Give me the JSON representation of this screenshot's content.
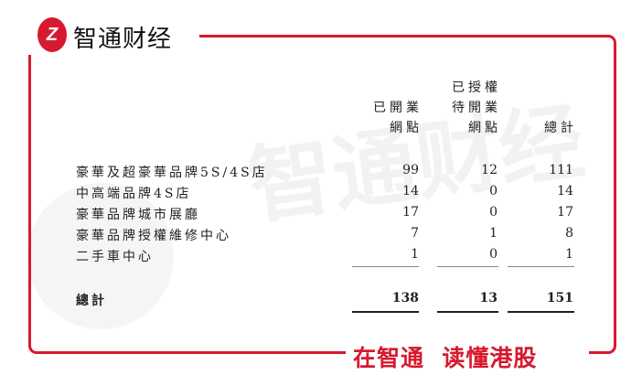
{
  "brand": {
    "logo_mark": "Z",
    "name": "智通财经",
    "slogan": "在智通  读懂港股",
    "watermark": "智通财经",
    "accent": "#d7192f"
  },
  "table": {
    "headers": [
      {
        "lines": [
          "",
          "已開業",
          "網點"
        ]
      },
      {
        "lines": [
          "已授權",
          "待開業",
          "網點"
        ]
      },
      {
        "lines": [
          "",
          "",
          "總計"
        ]
      }
    ],
    "rows": [
      {
        "label": "豪華及超豪華品牌5S/4S店",
        "values": [
          "99",
          "12",
          "111"
        ]
      },
      {
        "label": "中高端品牌4S店",
        "values": [
          "14",
          "0",
          "14"
        ]
      },
      {
        "label": "豪華品牌城市展廳",
        "values": [
          "17",
          "0",
          "17"
        ]
      },
      {
        "label": "豪華品牌授權維修中心",
        "values": [
          "7",
          "1",
          "8"
        ]
      },
      {
        "label": "二手車中心",
        "values": [
          "1",
          "0",
          "1"
        ]
      }
    ],
    "total": {
      "label": "總計",
      "values": [
        "138",
        "13",
        "151"
      ]
    }
  }
}
